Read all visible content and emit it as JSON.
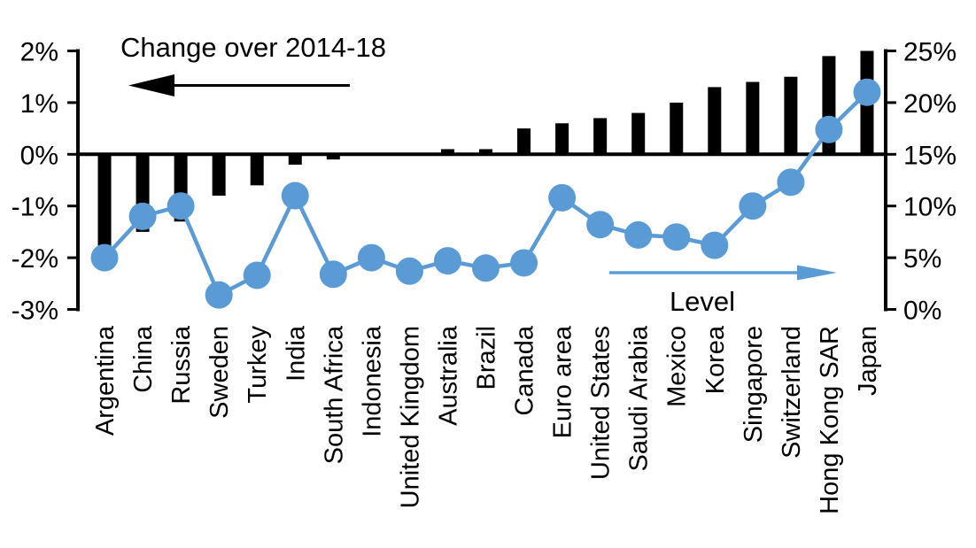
{
  "chart_data": {
    "type": "bar",
    "subtype": "dual-axis bar + line (levels and changes by country)",
    "title": "",
    "categories": [
      "Argentina",
      "China",
      "Russia",
      "Sweden",
      "Turkey",
      "India",
      "South Africa",
      "Indonesia",
      "United Kingdom",
      "Australia",
      "Brazil",
      "Canada",
      "Euro area",
      "United States",
      "Saudi Arabia",
      "Mexico",
      "Korea",
      "Singapore",
      "Switzerland",
      "Hong Kong SAR",
      "Japan"
    ],
    "series": [
      {
        "name": "Change over 2014-18",
        "type": "bar",
        "axis": "left",
        "color": "#000000",
        "values": [
          -2.0,
          -1.5,
          -1.3,
          -0.8,
          -0.6,
          -0.2,
          -0.1,
          0.0,
          0.0,
          0.1,
          0.1,
          0.5,
          0.6,
          0.7,
          0.8,
          1.0,
          1.3,
          1.4,
          1.5,
          1.9,
          2.0
        ]
      },
      {
        "name": "Level",
        "type": "line",
        "axis": "right",
        "color": "#5B9BD5",
        "values": [
          5.0,
          9.0,
          10.0,
          1.4,
          3.3,
          11.0,
          3.4,
          5.0,
          3.7,
          4.7,
          4.0,
          4.5,
          10.8,
          8.2,
          7.2,
          7.0,
          6.2,
          10.0,
          12.3,
          17.4,
          21.0
        ]
      }
    ],
    "left_axis": {
      "min": -3,
      "max": 2,
      "step": 1,
      "tick_labels": [
        "2%",
        "1%",
        "0%",
        "-1%",
        "-2%",
        "-3%"
      ]
    },
    "right_axis": {
      "min": 0,
      "max": 25,
      "step": 5,
      "tick_labels": [
        "25%",
        "20%",
        "15%",
        "10%",
        "5%",
        "0%"
      ]
    },
    "annotations": {
      "change_label": {
        "text": "Change over 2014-18",
        "color": "#000000",
        "arrow_direction": "left",
        "arrow_color": "#000000"
      },
      "level_label": {
        "text": "Level",
        "color": "#000000",
        "arrow_direction": "right",
        "arrow_color": "#5B9BD5"
      }
    },
    "grid": false,
    "legend_position": "none",
    "colors": {
      "bar": "#000000",
      "line": "#5B9BD5",
      "background": "#ffffff"
    }
  }
}
